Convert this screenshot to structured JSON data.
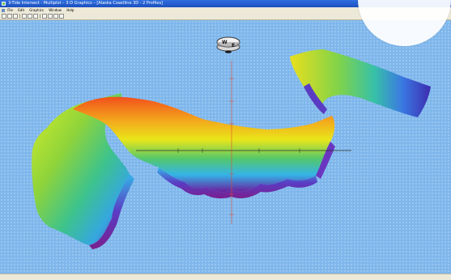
{
  "window": {
    "title": "3-Tide Intersect - Multiplot – 3-D Graphics – [Alaska Coastline 3D - 2 Profiles]",
    "title_color": "#1c4fbf"
  },
  "menubar": {
    "items": [
      {
        "label": "File"
      },
      {
        "label": "Edit"
      },
      {
        "label": "Graphics"
      },
      {
        "label": "Window"
      },
      {
        "label": "Help"
      }
    ]
  },
  "toolbar": {
    "tools": [
      {
        "icon": "zoom-in-icon"
      },
      {
        "icon": "zoom-out-icon"
      },
      {
        "icon": "zoom-fit-icon"
      },
      {
        "icon": "pan-icon"
      },
      {
        "icon": "rotate-icon"
      },
      {
        "icon": "view-3d-icon"
      },
      {
        "icon": "shading-icon"
      },
      {
        "icon": "settings-icon"
      },
      {
        "icon": "color-map-icon"
      },
      {
        "icon": "export-icon"
      }
    ]
  },
  "compass": {
    "label_west": "W",
    "label_east": "E"
  },
  "colors": {
    "viewport_background": "#7fb7ec",
    "terrain_high": "#f2501c",
    "terrain_mid": "#e9e61a",
    "terrain_low": "#34b4e8",
    "terrain_deep": "#6b1f9c",
    "vertical_axis": "#e24a2c",
    "horizontal_axis": "#2a2a2a"
  }
}
